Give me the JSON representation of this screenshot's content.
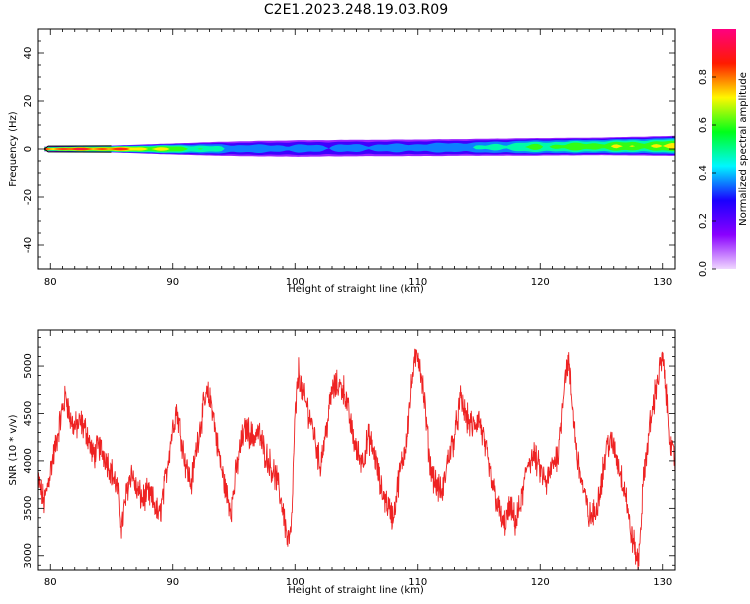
{
  "title": "C2E1.2023.248.19.03.R09",
  "chart_data": [
    {
      "type": "heatmap",
      "title": "",
      "xlabel": "Height of straight line (km)",
      "ylabel": "Frequency (Hz)",
      "xlim": [
        79,
        131
      ],
      "ylim": [
        -50,
        50
      ],
      "xticks": [
        80,
        90,
        100,
        110,
        120,
        130
      ],
      "yticks": [
        -40,
        -20,
        0,
        20,
        40
      ],
      "colorbar": {
        "label": "Normalized spectral amplitude",
        "range": [
          0,
          1
        ],
        "ticks": [
          "0.0",
          "0.2",
          "0.4",
          "0.6",
          "0.8"
        ],
        "colormap": "gist_rainbow_r",
        "colors": [
          "#f0d7ff",
          "#8a00ff",
          "#1a00ff",
          "#00f7ff",
          "#00ff19",
          "#fff700",
          "#ff1a00",
          "#ff0080"
        ]
      },
      "band": {
        "x_start": 79.5,
        "center_hz": [
          [
            79.5,
            0.0
          ],
          [
            85,
            0.0
          ],
          [
            90,
            0.0
          ],
          [
            95,
            0.1
          ],
          [
            100,
            0.2
          ],
          [
            105,
            0.4
          ],
          [
            110,
            0.5
          ],
          [
            115,
            0.7
          ],
          [
            120,
            0.9
          ],
          [
            125,
            1.1
          ],
          [
            131,
            1.3
          ]
        ],
        "halfwidth_hz": [
          [
            79.5,
            1.0
          ],
          [
            85,
            1.5
          ],
          [
            90,
            2.5
          ],
          [
            95,
            3.5
          ],
          [
            100,
            4.0
          ],
          [
            105,
            4.0
          ],
          [
            110,
            4.0
          ],
          [
            115,
            4.0
          ],
          [
            120,
            4.0
          ],
          [
            125,
            4.0
          ],
          [
            131,
            4.5
          ]
        ],
        "peak_amplitude": [
          [
            79.5,
            0.92
          ],
          [
            85,
            0.88
          ],
          [
            90,
            0.68
          ],
          [
            95,
            0.42
          ],
          [
            100,
            0.38
          ],
          [
            105,
            0.38
          ],
          [
            110,
            0.4
          ],
          [
            115,
            0.45
          ],
          [
            118,
            0.55
          ],
          [
            120,
            0.6
          ],
          [
            125,
            0.66
          ],
          [
            131,
            0.7
          ]
        ]
      }
    },
    {
      "type": "line",
      "title": "",
      "xlabel": "Height of straight line (km)",
      "ylabel": "SNR (10 * v/v)",
      "xlim": [
        79,
        131
      ],
      "ylim": [
        2850,
        5380
      ],
      "xticks": [
        80,
        90,
        100,
        110,
        120,
        130
      ],
      "yticks": [
        3000,
        3500,
        4000,
        4500,
        5000
      ],
      "color": "#ee2222",
      "series": [
        {
          "x": [
            79.0,
            79.5,
            80.0,
            80.5,
            81.0,
            81.3,
            81.6,
            82.0,
            82.5,
            83.0,
            83.5,
            84.0,
            84.5,
            85.0,
            85.5,
            85.8,
            86.2,
            86.6,
            87.0,
            87.5,
            88.0,
            88.5,
            88.9,
            89.3,
            89.7,
            90.0,
            90.3,
            90.7,
            91.0,
            91.5,
            92.0,
            92.5,
            92.8,
            93.2,
            93.6,
            94.0,
            94.5,
            94.8,
            95.2,
            95.6,
            96.0,
            96.5,
            97.0,
            97.5,
            98.0,
            98.5,
            99.0,
            99.4,
            99.7,
            100.0,
            100.3,
            100.6,
            101.0,
            101.5,
            102.0,
            102.5,
            103.0,
            103.5,
            104.0,
            104.5,
            105.0,
            105.5,
            106.0,
            106.5,
            107.0,
            107.5,
            108.0,
            108.5,
            109.0,
            109.3,
            109.6,
            110.0,
            110.3,
            110.6,
            111.0,
            111.5,
            112.0,
            112.5,
            113.0,
            113.5,
            114.0,
            114.5,
            115.0,
            115.5,
            116.0,
            116.5,
            117.0,
            117.5,
            118.0,
            118.5,
            119.0,
            119.5,
            120.0,
            120.5,
            121.0,
            121.5,
            122.0,
            122.3,
            122.6,
            123.0,
            123.5,
            124.0,
            124.5,
            125.0,
            125.5,
            126.0,
            126.5,
            127.0,
            127.3,
            127.6,
            128.0,
            128.5,
            129.0,
            129.5,
            130.0,
            130.4,
            130.7,
            131.0
          ],
          "y": [
            3800,
            3550,
            3900,
            4200,
            4550,
            4700,
            4450,
            4350,
            4400,
            4300,
            4050,
            4150,
            4050,
            3900,
            3700,
            3300,
            3650,
            3900,
            3700,
            3600,
            3650,
            3550,
            3400,
            3700,
            4100,
            4350,
            4550,
            4250,
            4000,
            3750,
            4200,
            4550,
            4700,
            4600,
            4200,
            3900,
            3600,
            3500,
            3900,
            4200,
            4350,
            4250,
            4300,
            4100,
            3950,
            3800,
            3500,
            3150,
            3250,
            4450,
            4950,
            4700,
            4550,
            4300,
            3950,
            4300,
            4750,
            4800,
            4750,
            4400,
            4100,
            4000,
            4250,
            4050,
            3700,
            3550,
            3400,
            3850,
            4150,
            4550,
            4950,
            5150,
            4900,
            4550,
            3950,
            3750,
            3650,
            4050,
            4250,
            4650,
            4450,
            4350,
            4450,
            4150,
            3800,
            3550,
            3300,
            3500,
            3350,
            3600,
            4000,
            4050,
            3900,
            3750,
            3950,
            4100,
            4900,
            5050,
            4600,
            4050,
            3700,
            3400,
            3450,
            3800,
            4200,
            4150,
            3900,
            3650,
            3300,
            3150,
            2900,
            3900,
            4400,
            4800,
            5100,
            4550,
            4100,
            4000
          ]
        }
      ]
    }
  ]
}
